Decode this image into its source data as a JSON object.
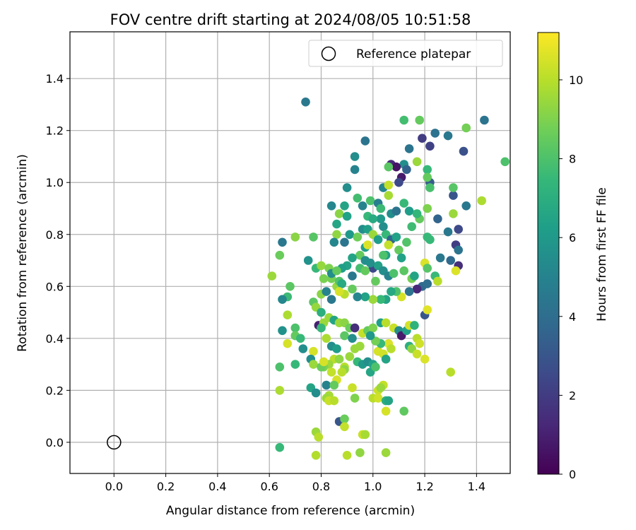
{
  "chart_data": {
    "type": "scatter",
    "title": "FOV centre drift starting at 2024/08/05 10:51:58",
    "xlabel": "Angular distance from reference (arcmin)",
    "ylabel": "Rotation from reference (arcmin)",
    "xlim": [
      -0.17,
      1.53
    ],
    "ylim": [
      -0.12,
      1.58
    ],
    "xticks": [
      "0.0",
      "0.2",
      "0.4",
      "0.6",
      "0.8",
      "1.0",
      "1.2",
      "1.4"
    ],
    "yticks": [
      "0.0",
      "0.2",
      "0.4",
      "0.6",
      "0.8",
      "1.0",
      "1.2",
      "1.4"
    ],
    "grid": true,
    "legend": {
      "placement": "top-right",
      "entries": [
        "Reference platepar"
      ]
    },
    "reference_point": {
      "name": "Reference platepar",
      "x": 0.0,
      "y": 0.0
    },
    "colorbar": {
      "label": "Hours from first FF file",
      "min": 0,
      "max": 11.2,
      "ticks": [
        "0",
        "2",
        "4",
        "6",
        "8",
        "10"
      ],
      "colormap": [
        "#440154",
        "#482878",
        "#3e4989",
        "#31688e",
        "#26828e",
        "#1f9e89",
        "#35b779",
        "#6ece58",
        "#b5de2b",
        "#fde725"
      ]
    },
    "points": [
      [
        0.74,
        1.31,
        4.5
      ],
      [
        1.43,
        1.24,
        4.3
      ],
      [
        1.29,
        1.18,
        4.5
      ],
      [
        1.24,
        1.19,
        4.2
      ],
      [
        1.19,
        1.17,
        2.0
      ],
      [
        1.22,
        1.14,
        2.2
      ],
      [
        1.35,
        1.12,
        2.8
      ],
      [
        1.14,
        1.13,
        4.3
      ],
      [
        1.22,
        1.0,
        3.3
      ],
      [
        1.31,
        0.95,
        3.0
      ],
      [
        1.36,
        0.91,
        4.5
      ],
      [
        1.33,
        0.82,
        2.5
      ],
      [
        1.32,
        0.76,
        2.0
      ],
      [
        1.33,
        0.74,
        4.3
      ],
      [
        1.33,
        0.68,
        1.5
      ],
      [
        1.29,
        0.81,
        4.5
      ],
      [
        1.3,
        0.7,
        3.8
      ],
      [
        1.26,
        0.71,
        4.5
      ],
      [
        1.25,
        0.86,
        3.6
      ],
      [
        1.12,
        1.24,
        7.8
      ],
      [
        1.18,
        1.24,
        8.5
      ],
      [
        1.36,
        1.21,
        8.8
      ],
      [
        1.51,
        1.08,
        8.0
      ],
      [
        1.21,
        1.05,
        7.5
      ],
      [
        1.21,
        1.02,
        8.5
      ],
      [
        1.31,
        0.98,
        8.2
      ],
      [
        1.12,
        1.07,
        5.5
      ],
      [
        1.07,
        1.07,
        1.3
      ],
      [
        1.09,
        1.06,
        0.6
      ],
      [
        1.13,
        1.05,
        3.5
      ],
      [
        1.11,
        1.02,
        0.8
      ],
      [
        1.17,
        1.08,
        9.5
      ],
      [
        1.06,
        1.06,
        8.3
      ],
      [
        1.1,
        1.0,
        2.5
      ],
      [
        1.22,
        0.98,
        7.9
      ],
      [
        1.21,
        0.9,
        9.0
      ],
      [
        1.18,
        0.86,
        8.5
      ],
      [
        1.21,
        0.79,
        7.5
      ],
      [
        1.22,
        0.78,
        7.5
      ],
      [
        1.31,
        0.88,
        9.5
      ],
      [
        1.42,
        0.93,
        9.8
      ],
      [
        1.24,
        0.64,
        7.5
      ],
      [
        1.25,
        0.62,
        10.0
      ],
      [
        0.97,
        1.16,
        4.3
      ],
      [
        0.93,
        1.1,
        5.5
      ],
      [
        0.93,
        1.05,
        5.0
      ],
      [
        0.9,
        0.98,
        5.5
      ],
      [
        0.96,
        0.91,
        5.0
      ],
      [
        0.99,
        0.93,
        8.0
      ],
      [
        1.02,
        0.92,
        4.8
      ],
      [
        1.04,
        0.98,
        5.1
      ],
      [
        1.06,
        0.99,
        10.2
      ],
      [
        1.06,
        0.95,
        9.7
      ],
      [
        1.03,
        0.9,
        7.6
      ],
      [
        0.84,
        0.91,
        5.2
      ],
      [
        0.87,
        0.88,
        9.2
      ],
      [
        0.89,
        0.91,
        6.5
      ],
      [
        0.94,
        0.94,
        7.8
      ],
      [
        0.98,
        0.87,
        7.5
      ],
      [
        1.07,
        0.88,
        5.5
      ],
      [
        1.09,
        0.89,
        4.3
      ],
      [
        1.12,
        0.92,
        7.5
      ],
      [
        1.14,
        0.89,
        6.2
      ],
      [
        1.15,
        0.83,
        7.7
      ],
      [
        1.17,
        0.88,
        7.4
      ],
      [
        1.13,
        0.77,
        8.1
      ],
      [
        1.1,
        0.74,
        8.5
      ],
      [
        1.11,
        0.71,
        6.4
      ],
      [
        0.86,
        0.84,
        6.6
      ],
      [
        0.9,
        0.87,
        6.4
      ],
      [
        0.86,
        0.8,
        9.3
      ],
      [
        0.85,
        0.77,
        5.2
      ],
      [
        0.89,
        0.77,
        4.4
      ],
      [
        0.91,
        0.8,
        6.0
      ],
      [
        0.94,
        0.79,
        8.7
      ],
      [
        0.96,
        0.82,
        5.5
      ],
      [
        0.98,
        0.82,
        6.3
      ],
      [
        1.0,
        0.8,
        9.5
      ],
      [
        1.02,
        0.78,
        6.2
      ],
      [
        1.04,
        0.83,
        5.5
      ],
      [
        1.05,
        0.8,
        7.5
      ],
      [
        1.07,
        0.78,
        3.7
      ],
      [
        1.09,
        0.79,
        6.4
      ],
      [
        1.03,
        0.86,
        6.0
      ],
      [
        1.0,
        0.86,
        6.8
      ],
      [
        0.97,
        0.75,
        6.3
      ],
      [
        0.98,
        0.76,
        10.6
      ],
      [
        0.95,
        0.72,
        8.5
      ],
      [
        0.97,
        0.7,
        5.5
      ],
      [
        0.92,
        0.71,
        6.5
      ],
      [
        0.9,
        0.68,
        6.5
      ],
      [
        0.88,
        0.67,
        6.2
      ],
      [
        1.0,
        0.67,
        2.5
      ],
      [
        1.02,
        0.68,
        6.4
      ],
      [
        1.05,
        0.72,
        6.3
      ],
      [
        1.06,
        0.76,
        10.2
      ],
      [
        1.04,
        0.72,
        8.0
      ],
      [
        0.99,
        0.69,
        5.6
      ],
      [
        0.65,
        0.77,
        4.5
      ],
      [
        0.7,
        0.79,
        9.2
      ],
      [
        0.77,
        0.79,
        8.2
      ],
      [
        0.64,
        0.72,
        8.6
      ],
      [
        0.61,
        0.64,
        9.5
      ],
      [
        0.75,
        0.7,
        5.7
      ],
      [
        0.78,
        0.67,
        7.5
      ],
      [
        0.8,
        0.68,
        9.4
      ],
      [
        0.83,
        0.67,
        9.0
      ],
      [
        0.84,
        0.63,
        8.8
      ],
      [
        0.81,
        0.63,
        8.9
      ],
      [
        0.8,
        0.57,
        9.2
      ],
      [
        0.86,
        0.6,
        9.4
      ],
      [
        0.87,
        0.62,
        8.1
      ],
      [
        0.88,
        0.61,
        6.8
      ],
      [
        0.84,
        0.65,
        5.5
      ],
      [
        0.86,
        0.66,
        8.5
      ],
      [
        0.92,
        0.64,
        4.5
      ],
      [
        0.95,
        0.67,
        7.8
      ],
      [
        0.97,
        0.66,
        8.5
      ],
      [
        1.01,
        0.62,
        8.5
      ],
      [
        1.04,
        0.66,
        5.5
      ],
      [
        1.06,
        0.64,
        5.0
      ],
      [
        1.08,
        0.65,
        8.0
      ],
      [
        1.12,
        0.66,
        8.3
      ],
      [
        1.15,
        0.63,
        8.8
      ],
      [
        1.16,
        0.64,
        6.5
      ],
      [
        1.2,
        0.69,
        10.6
      ],
      [
        1.21,
        0.67,
        8.2
      ],
      [
        1.19,
        0.6,
        3.8
      ],
      [
        1.21,
        0.61,
        4.0
      ],
      [
        1.17,
        0.59,
        1.3
      ],
      [
        1.14,
        0.58,
        4.3
      ],
      [
        1.11,
        0.56,
        10.5
      ],
      [
        1.09,
        0.58,
        8.0
      ],
      [
        1.07,
        0.58,
        6.7
      ],
      [
        1.05,
        0.55,
        6.5
      ],
      [
        1.03,
        0.55,
        7.5
      ],
      [
        1.0,
        0.55,
        9.5
      ],
      [
        0.97,
        0.56,
        6.4
      ],
      [
        0.94,
        0.56,
        5.2
      ],
      [
        0.92,
        0.59,
        8.5
      ],
      [
        0.89,
        0.57,
        10.0
      ],
      [
        0.87,
        0.58,
        10.5
      ],
      [
        0.84,
        0.55,
        4.5
      ],
      [
        0.82,
        0.58,
        5.0
      ],
      [
        0.68,
        0.6,
        8.3
      ],
      [
        0.67,
        0.56,
        7.6
      ],
      [
        0.65,
        0.55,
        5.2
      ],
      [
        0.67,
        0.49,
        9.8
      ],
      [
        0.7,
        0.44,
        8.0
      ],
      [
        0.7,
        0.41,
        8.5
      ],
      [
        0.65,
        0.43,
        5.7
      ],
      [
        0.67,
        0.38,
        10.5
      ],
      [
        0.72,
        0.4,
        7.5
      ],
      [
        0.73,
        0.36,
        5.5
      ],
      [
        0.77,
        0.35,
        10.5
      ],
      [
        0.76,
        0.32,
        5.5
      ],
      [
        0.77,
        0.3,
        9.5
      ],
      [
        0.7,
        0.3,
        7.5
      ],
      [
        0.64,
        0.29,
        8.0
      ],
      [
        0.64,
        0.2,
        9.8
      ],
      [
        0.76,
        0.21,
        6.5
      ],
      [
        0.78,
        0.19,
        5.5
      ],
      [
        0.77,
        0.54,
        8.3
      ],
      [
        0.78,
        0.52,
        9.4
      ],
      [
        0.8,
        0.5,
        7.0
      ],
      [
        0.79,
        0.45,
        1.0
      ],
      [
        0.81,
        0.46,
        9.5
      ],
      [
        0.8,
        0.44,
        7.5
      ],
      [
        0.83,
        0.48,
        9.5
      ],
      [
        0.85,
        0.47,
        6.5
      ],
      [
        0.87,
        0.46,
        9.5
      ],
      [
        0.89,
        0.46,
        9.2
      ],
      [
        0.91,
        0.44,
        8.6
      ],
      [
        0.89,
        0.41,
        8.3
      ],
      [
        0.92,
        0.4,
        5.5
      ],
      [
        0.93,
        0.44,
        1.5
      ],
      [
        0.96,
        0.42,
        10.2
      ],
      [
        0.98,
        0.43,
        8.5
      ],
      [
        1.0,
        0.44,
        9.0
      ],
      [
        1.03,
        0.46,
        6.3
      ],
      [
        1.05,
        0.46,
        10.0
      ],
      [
        1.08,
        0.44,
        10.3
      ],
      [
        1.1,
        0.43,
        5.5
      ],
      [
        1.11,
        0.41,
        0.8
      ],
      [
        1.13,
        0.43,
        6.3
      ],
      [
        1.14,
        0.45,
        10.5
      ],
      [
        1.16,
        0.45,
        7.2
      ],
      [
        1.2,
        0.49,
        3.0
      ],
      [
        1.21,
        0.51,
        10.7
      ],
      [
        1.17,
        0.4,
        10.0
      ],
      [
        1.18,
        0.38,
        10.4
      ],
      [
        1.14,
        0.37,
        7.0
      ],
      [
        1.15,
        0.36,
        9.3
      ],
      [
        1.17,
        0.34,
        10.3
      ],
      [
        1.2,
        0.32,
        10.6
      ],
      [
        1.12,
        0.12,
        8.4
      ],
      [
        1.3,
        0.27,
        10.0
      ],
      [
        1.32,
        0.66,
        10.6
      ],
      [
        0.82,
        0.4,
        9.8
      ],
      [
        0.84,
        0.37,
        5.5
      ],
      [
        0.86,
        0.36,
        6.2
      ],
      [
        0.85,
        0.32,
        10.0
      ],
      [
        0.83,
        0.3,
        9.5
      ],
      [
        0.81,
        0.29,
        9.0
      ],
      [
        0.84,
        0.27,
        10.2
      ],
      [
        0.86,
        0.24,
        10.5
      ],
      [
        0.82,
        0.22,
        5.0
      ],
      [
        0.85,
        0.22,
        8.5
      ],
      [
        0.8,
        0.29,
        8.6
      ],
      [
        0.81,
        0.31,
        10.5
      ],
      [
        0.87,
        0.32,
        9.3
      ],
      [
        0.89,
        0.29,
        10.0
      ],
      [
        0.91,
        0.33,
        9.5
      ],
      [
        0.93,
        0.36,
        9.5
      ],
      [
        0.95,
        0.37,
        9.5
      ],
      [
        0.94,
        0.31,
        7.5
      ],
      [
        0.96,
        0.3,
        6.0
      ],
      [
        0.98,
        0.31,
        5.5
      ],
      [
        1.0,
        0.3,
        6.4
      ],
      [
        0.99,
        0.27,
        6.6
      ],
      [
        1.01,
        0.29,
        8.0
      ],
      [
        1.02,
        0.35,
        10.5
      ],
      [
        1.04,
        0.34,
        10.4
      ],
      [
        1.06,
        0.38,
        10.6
      ],
      [
        1.07,
        0.36,
        10.0
      ],
      [
        1.03,
        0.38,
        7.5
      ],
      [
        1.01,
        0.39,
        8.8
      ],
      [
        0.99,
        0.41,
        6.0
      ],
      [
        1.05,
        0.32,
        6.5
      ],
      [
        1.02,
        0.2,
        10.3
      ],
      [
        1.04,
        0.22,
        10.2
      ],
      [
        1.03,
        0.21,
        9.5
      ],
      [
        1.0,
        0.17,
        10.0
      ],
      [
        1.02,
        0.17,
        10.4
      ],
      [
        1.05,
        0.16,
        7.0
      ],
      [
        1.06,
        0.16,
        6.5
      ],
      [
        0.93,
        0.17,
        9.0
      ],
      [
        0.92,
        0.21,
        10.3
      ],
      [
        0.89,
        0.28,
        9.3
      ],
      [
        0.88,
        0.27,
        10.0
      ],
      [
        0.83,
        0.18,
        9.7
      ],
      [
        0.82,
        0.17,
        9.5
      ],
      [
        0.83,
        0.16,
        10.3
      ],
      [
        0.85,
        0.16,
        10.0
      ],
      [
        0.87,
        0.08,
        3.0
      ],
      [
        0.89,
        0.09,
        8.6
      ],
      [
        0.89,
        0.06,
        10.2
      ],
      [
        0.96,
        0.03,
        10.3
      ],
      [
        0.97,
        0.03,
        9.7
      ],
      [
        0.95,
        -0.04,
        9.3
      ],
      [
        1.05,
        -0.04,
        9.5
      ],
      [
        0.9,
        -0.05,
        10.0
      ],
      [
        0.78,
        0.04,
        9.5
      ],
      [
        0.79,
        0.02,
        10.0
      ],
      [
        0.78,
        -0.05,
        9.9
      ],
      [
        0.64,
        -0.02,
        7.5
      ],
      [
        1.05,
        0.12,
        10.5
      ]
    ]
  }
}
